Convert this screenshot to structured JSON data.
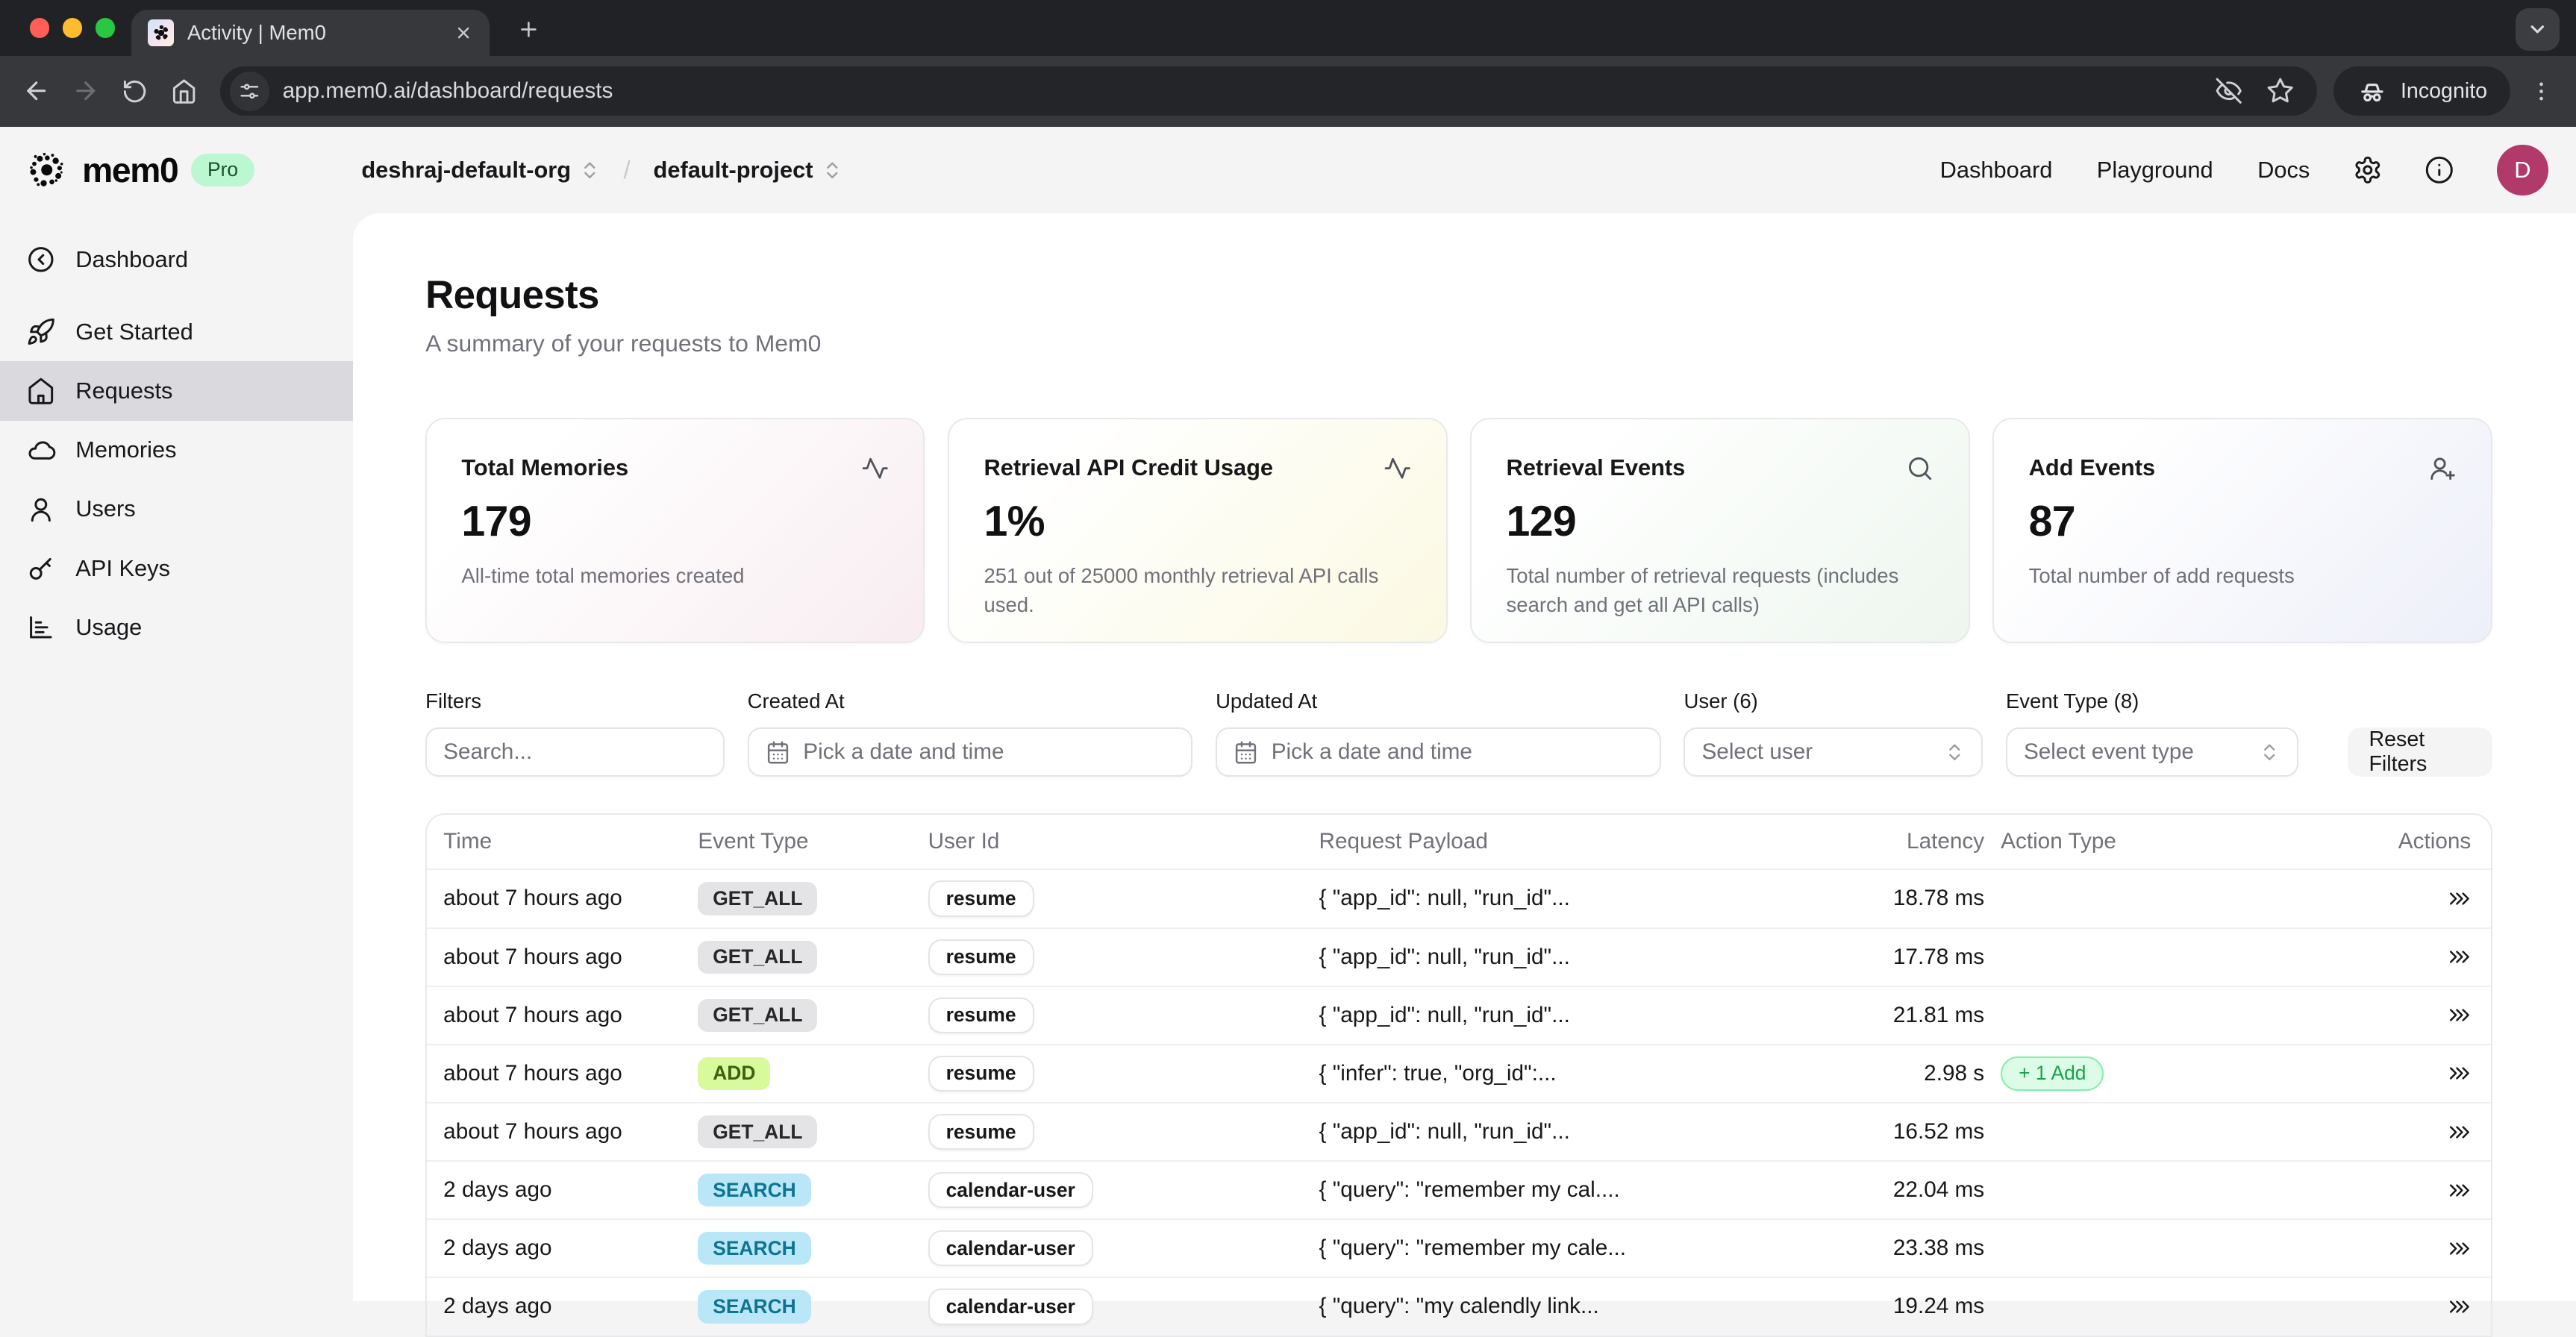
{
  "browser": {
    "tab_title": "Activity | Mem0",
    "url": "app.mem0.ai/dashboard/requests",
    "incognito_label": "Incognito"
  },
  "header": {
    "logo_text": "mem0",
    "pro_badge": "Pro",
    "org": "deshraj-default-org",
    "breadcrumb_separator": "/",
    "project": "default-project",
    "nav": [
      "Dashboard",
      "Playground",
      "Docs"
    ],
    "avatar_initial": "D"
  },
  "sidebar": {
    "items": [
      {
        "label": "Dashboard",
        "icon": "circle-chevron-left-icon",
        "active": false
      },
      {
        "label": "Get Started",
        "icon": "rocket-icon",
        "active": false
      },
      {
        "label": "Requests",
        "icon": "house-icon",
        "active": true
      },
      {
        "label": "Memories",
        "icon": "cloud-icon",
        "active": false
      },
      {
        "label": "Users",
        "icon": "user-icon",
        "active": false
      },
      {
        "label": "API Keys",
        "icon": "key-icon",
        "active": false
      },
      {
        "label": "Usage",
        "icon": "bar-chart-icon",
        "active": false
      }
    ]
  },
  "page": {
    "title": "Requests",
    "subtitle": "A summary of your requests to Mem0"
  },
  "stat_cards": [
    {
      "title": "Total Memories",
      "icon": "activity-icon",
      "value": "179",
      "description": "All-time total memories created",
      "tint": "#f8edf1"
    },
    {
      "title": "Retrieval API Credit Usage",
      "icon": "activity-icon",
      "value": "1%",
      "description": "251 out of 25000 monthly retrieval API calls used.",
      "tint": "#fbf9e2"
    },
    {
      "title": "Retrieval Events",
      "icon": "search-icon",
      "value": "129",
      "description": "Total number of retrieval requests (includes search and get all API calls)",
      "tint": "#edf6ee"
    },
    {
      "title": "Add Events",
      "icon": "user-plus-icon",
      "value": "87",
      "description": "Total number of add requests",
      "tint": "#edeff9"
    }
  ],
  "filters": {
    "search": {
      "label": "Filters",
      "placeholder": "Search..."
    },
    "created_at": {
      "label": "Created At",
      "placeholder": "Pick a date and time"
    },
    "updated_at": {
      "label": "Updated At",
      "placeholder": "Pick a date and time"
    },
    "user": {
      "label": "User (6)",
      "value": "Select user"
    },
    "event_type": {
      "label": "Event Type (8)",
      "value": "Select event type"
    },
    "reset_label": "Reset Filters"
  },
  "table": {
    "columns": [
      "Time",
      "Event Type",
      "User Id",
      "Request Payload",
      "Latency",
      "Action Type",
      "Actions"
    ],
    "rows": [
      {
        "time": "about 7 hours ago",
        "event_type": "GET_ALL",
        "user_id": "resume",
        "payload": "{ \"app_id\": null, \"run_id\"...",
        "latency": "18.78 ms",
        "action_type": ""
      },
      {
        "time": "about 7 hours ago",
        "event_type": "GET_ALL",
        "user_id": "resume",
        "payload": "{ \"app_id\": null, \"run_id\"...",
        "latency": "17.78 ms",
        "action_type": ""
      },
      {
        "time": "about 7 hours ago",
        "event_type": "GET_ALL",
        "user_id": "resume",
        "payload": "{ \"app_id\": null, \"run_id\"...",
        "latency": "21.81 ms",
        "action_type": ""
      },
      {
        "time": "about 7 hours ago",
        "event_type": "ADD",
        "user_id": "resume",
        "payload": "{ \"infer\": true, \"org_id\":...",
        "latency": "2.98 s",
        "action_type": "+ 1 Add"
      },
      {
        "time": "about 7 hours ago",
        "event_type": "GET_ALL",
        "user_id": "resume",
        "payload": "{ \"app_id\": null, \"run_id\"...",
        "latency": "16.52 ms",
        "action_type": ""
      },
      {
        "time": "2 days ago",
        "event_type": "SEARCH",
        "user_id": "calendar-user",
        "payload": "{ \"query\": \"remember my cal....",
        "latency": "22.04 ms",
        "action_type": ""
      },
      {
        "time": "2 days ago",
        "event_type": "SEARCH",
        "user_id": "calendar-user",
        "payload": "{ \"query\": \"remember my cale...",
        "latency": "23.38 ms",
        "action_type": ""
      },
      {
        "time": "2 days ago",
        "event_type": "SEARCH",
        "user_id": "calendar-user",
        "payload": "{ \"query\": \"my calendly link...",
        "latency": "19.24 ms",
        "action_type": ""
      }
    ]
  },
  "colors": {
    "event_badges": {
      "GET_ALL": {
        "bg": "#e4e4e7",
        "fg": "#27272a"
      },
      "ADD": {
        "bg": "#d9f99d",
        "fg": "#3f6212"
      },
      "SEARCH": {
        "bg": "#b9e7f8",
        "fg": "#0e7490"
      }
    },
    "add_pill": {
      "bg": "#dcfce7",
      "border": "#86efac",
      "fg": "#16a34a"
    },
    "pro_badge": {
      "bg": "#bbf7d0",
      "fg": "#14532d"
    },
    "avatar_bg": "#b13a6b"
  }
}
